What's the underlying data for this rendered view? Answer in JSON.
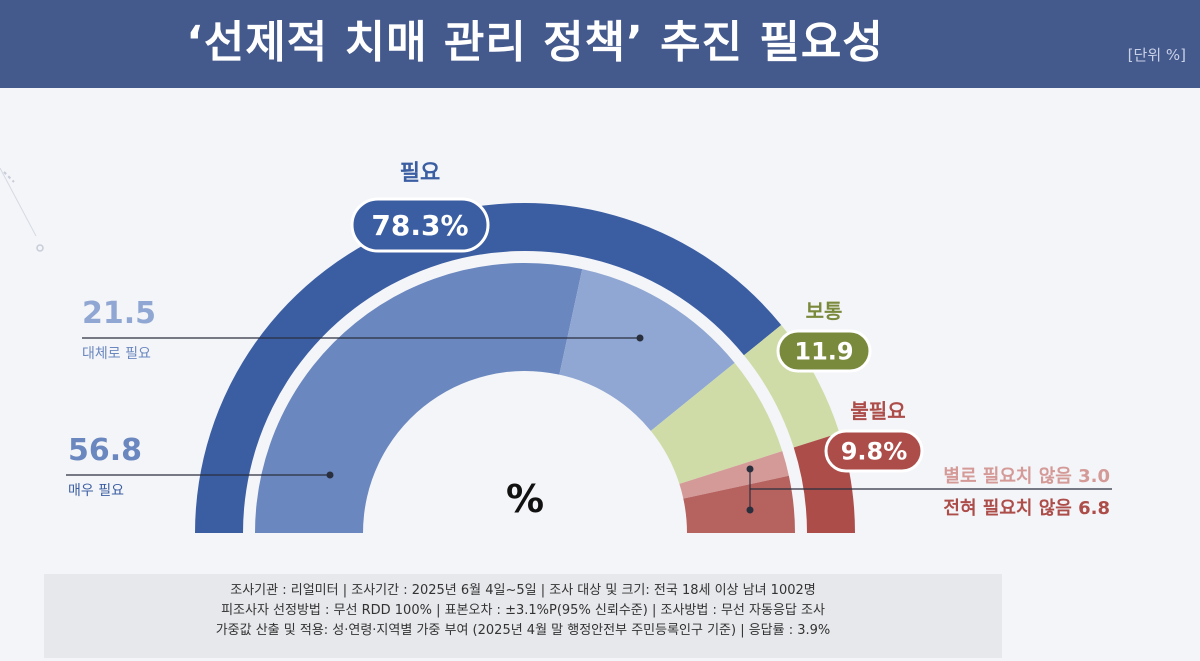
{
  "header": {
    "title": "‘선제적 치매 관리 정책’ 추진 필요성",
    "unit": "[단위 %]"
  },
  "colors": {
    "header_bg": "#44598c",
    "need": "#3b5ea3",
    "need_strong": "#6a87bf",
    "need_mild": "#8fa7d2",
    "neutral": "#cfdca8",
    "neutral_badge": "#7a8a3c",
    "unneed": "#ad4d4a",
    "unneed_mild": "#d49a98",
    "unneed_strong": "#b6625f"
  },
  "chart_data": {
    "type": "pie",
    "title": "‘선제적 치매 관리 정책’ 추진 필요성",
    "unit": "%",
    "center_label": "%",
    "groups": [
      {
        "name": "필요",
        "value": 78.3,
        "display": "78.3%",
        "sub": [
          {
            "name": "매우 필요",
            "value": 56.8,
            "display": "56.8"
          },
          {
            "name": "대체로 필요",
            "value": 21.5,
            "display": "21.5"
          }
        ]
      },
      {
        "name": "보통",
        "value": 11.9,
        "display": "11.9"
      },
      {
        "name": "불필요",
        "value": 9.8,
        "display": "9.8%",
        "sub": [
          {
            "name": "별로 필요치 않음",
            "value": 3.0,
            "display": "3.0"
          },
          {
            "name": "전혀 필요치 않음",
            "value": 6.8,
            "display": "6.8"
          }
        ]
      }
    ]
  },
  "footer": {
    "lines": [
      "조사기관 : 리얼미터 | 조사기간 : 2025년 6월 4일~5일 | 조사 대상 및 크기: 전국 18세 이상 남녀 1002명",
      "피조사자 선정방법 : 무선 RDD 100% | 표본오차 : ±3.1%P(95% 신뢰수준) | 조사방법 : 무선 자동응답 조사",
      "가중값 산출 및 적용: 성·연령·지역별 가중 부여 (2025년 4월 말 행정안전부 주민등록인구 기준) | 응답률 : 3.9%"
    ]
  }
}
